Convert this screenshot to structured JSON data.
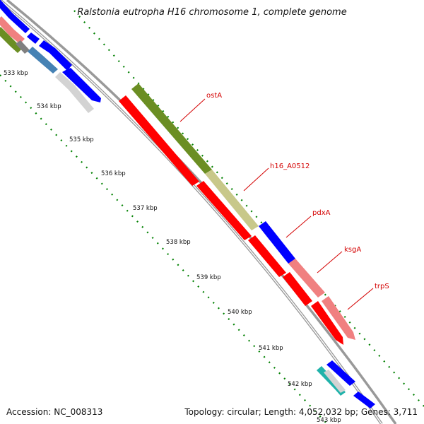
{
  "map": {
    "title": "Ralstonia eutropha H16 chromosome 1, complete genome",
    "accession": "Accession: NC_008313",
    "summary": "Topology: circular; Length: 4,052,032 bp; Genes: 3,711"
  },
  "ticks": [
    "533 kbp",
    "534 kbp",
    "535 kbp",
    "536 kbp",
    "537 kbp",
    "538 kbp",
    "539 kbp",
    "540 kbp",
    "541 kbp",
    "542 kbp",
    "543 kbp"
  ],
  "gene_labels": [
    "ostA",
    "h16_A0512",
    "pdxA",
    "ksgA",
    "trpS"
  ],
  "colors": {
    "backbone": "#999999",
    "forward_blue": "#0000ff",
    "reverse_red": "#ff0000",
    "olive": "#6b8e23",
    "khaki": "#c8c88a",
    "salmon": "#f08080",
    "steelblue": "#4682b4",
    "lightgray": "#d3d3d3",
    "gray": "#808080",
    "teal": "#20b2aa",
    "ticks_green": "#008000",
    "label_red": "#d40000"
  }
}
